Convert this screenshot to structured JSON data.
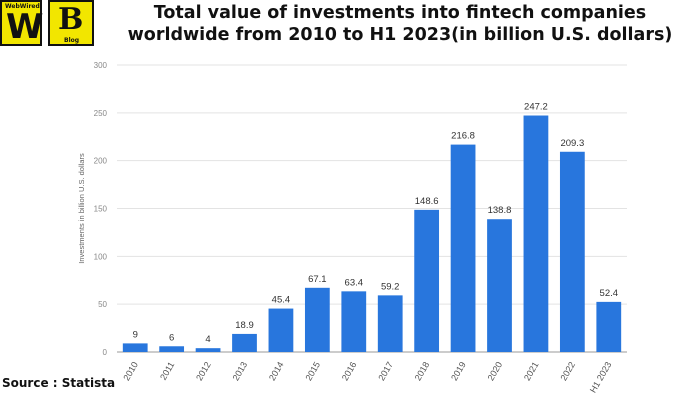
{
  "logo": {
    "w_small": "WebWired",
    "w_letter": "W",
    "b_letter": "B",
    "b_small": "Blog"
  },
  "source": "Source : Statista",
  "colors": {
    "bar": "#2876dd",
    "grid": "#e3e3e3",
    "axis": "#9a9a9a"
  },
  "chart_data": {
    "type": "bar",
    "title": "Total value of investments into fintech companies worldwide from 2010 to H1 2023(in billion U.S. dollars)",
    "xlabel": "",
    "ylabel": "Investments in billion U.S. dollars",
    "categories": [
      "2010",
      "2011",
      "2012",
      "2013",
      "2014",
      "2015",
      "2016",
      "2017",
      "2018",
      "2019",
      "2020",
      "2021",
      "2022",
      "H1 2023"
    ],
    "values": [
      9,
      6,
      4,
      18.9,
      45.4,
      67.1,
      63.4,
      59.2,
      148.6,
      216.8,
      138.8,
      247.2,
      209.3,
      52.4
    ],
    "data_labels": [
      "9",
      "6",
      "4",
      "18.9",
      "45.4",
      "67.1",
      "63.4",
      "59.2",
      "148.6",
      "216.8",
      "138.8",
      "247.2",
      "209.3",
      "52.4"
    ],
    "yticks": [
      0,
      50,
      100,
      150,
      200,
      250,
      300
    ],
    "ylim": [
      0,
      300
    ],
    "grid": true,
    "legend": "none"
  }
}
